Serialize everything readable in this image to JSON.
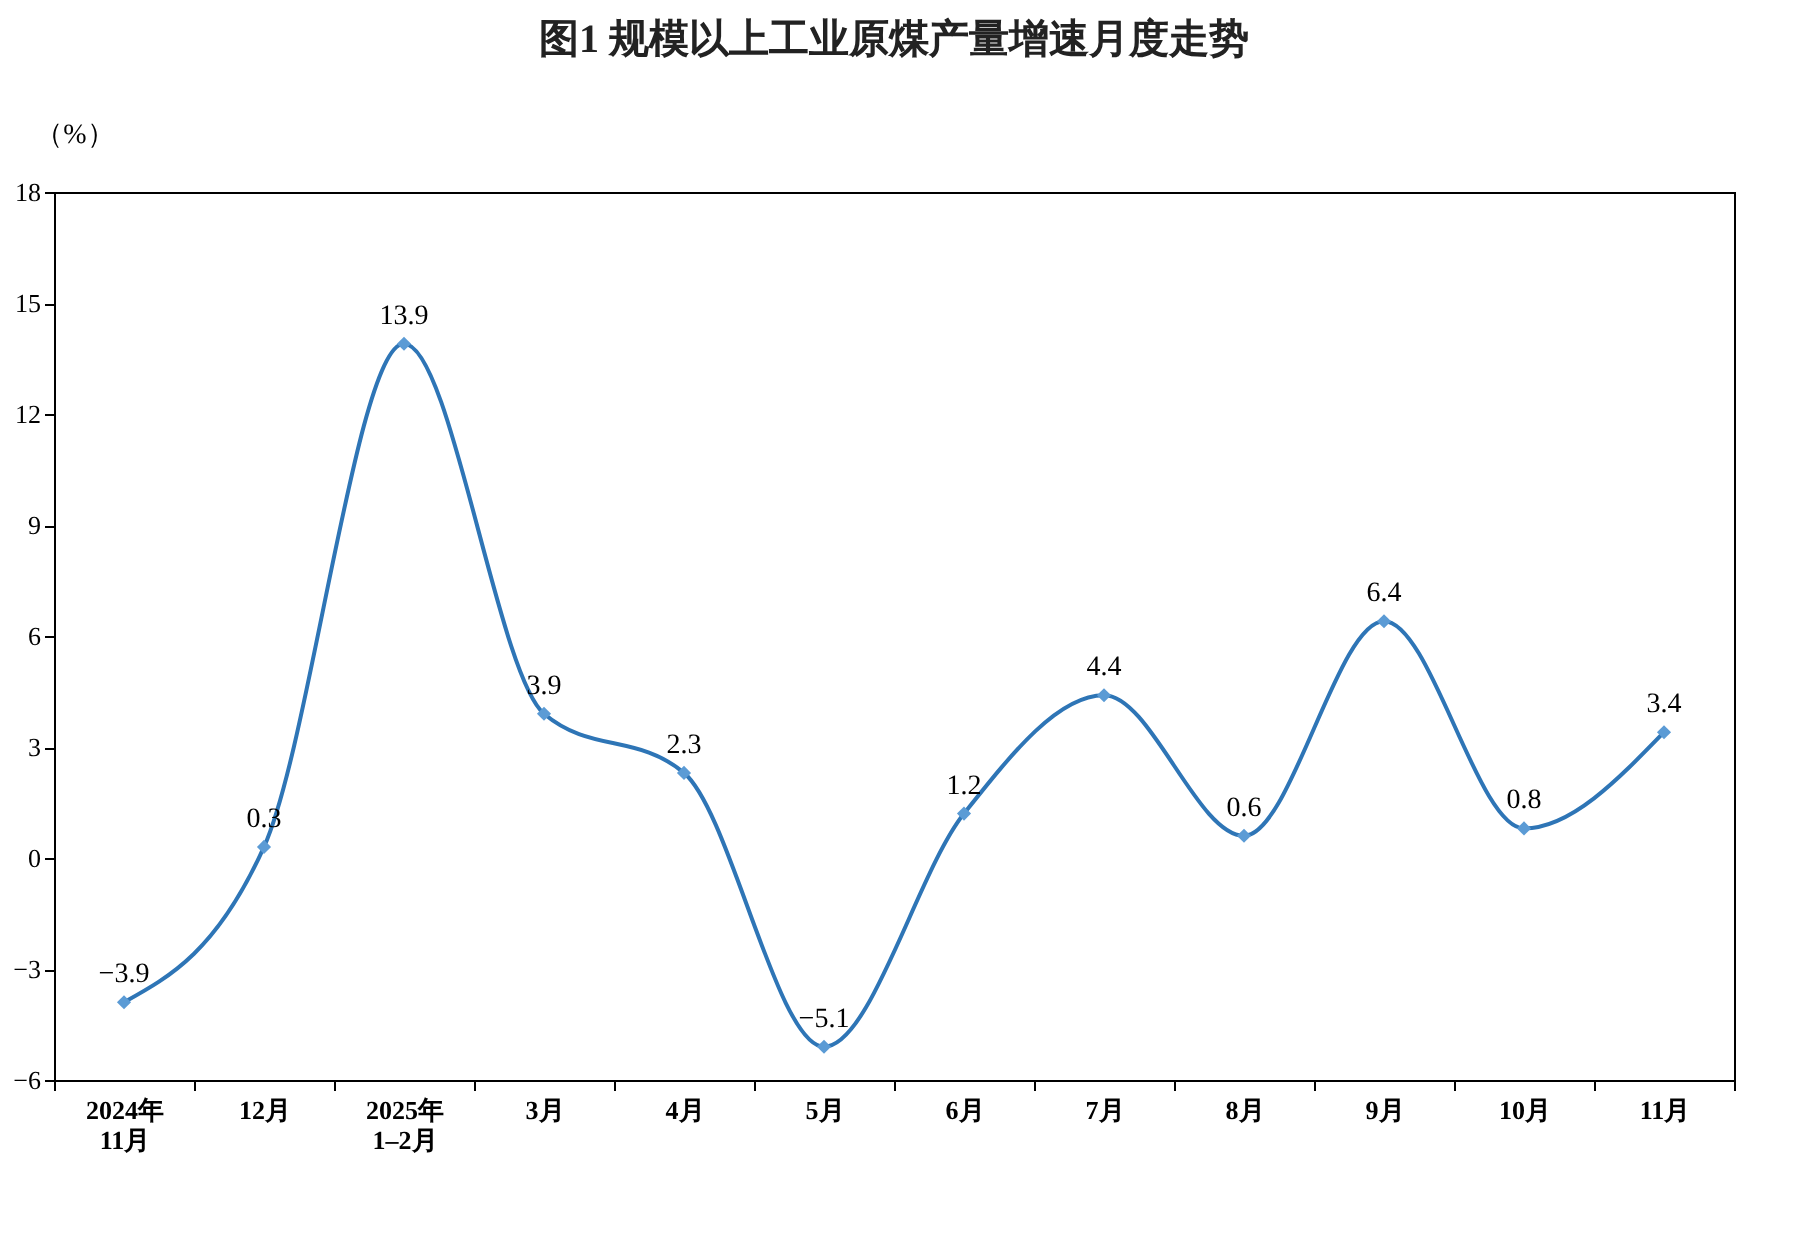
{
  "chart_data": {
    "type": "line",
    "title": "图1 规模以上工业原煤产量增速月度走势",
    "ylabel": "（%）",
    "categories": [
      "2024年\n11月",
      "12月",
      "2025年\n1–2月",
      "3月",
      "4月",
      "5月",
      "6月",
      "7月",
      "8月",
      "9月",
      "10月",
      "11月"
    ],
    "series": [
      {
        "color": "#2e75b6",
        "values": [
          -3.9,
          0.3,
          13.9,
          3.9,
          2.3,
          -5.1,
          1.2,
          4.4,
          0.6,
          6.4,
          0.8,
          3.4
        ],
        "value_labels": [
          "−3.9",
          "0.3",
          "13.9",
          "3.9",
          "2.3",
          "−5.1",
          "1.2",
          "4.4",
          "0.6",
          "6.4",
          "0.8",
          "3.4"
        ]
      }
    ],
    "ylim": [
      -6,
      18
    ],
    "yticks": [
      -6,
      -3,
      0,
      3,
      6,
      9,
      12,
      15,
      18
    ],
    "marker": "diamond",
    "line_style": "solid"
  }
}
